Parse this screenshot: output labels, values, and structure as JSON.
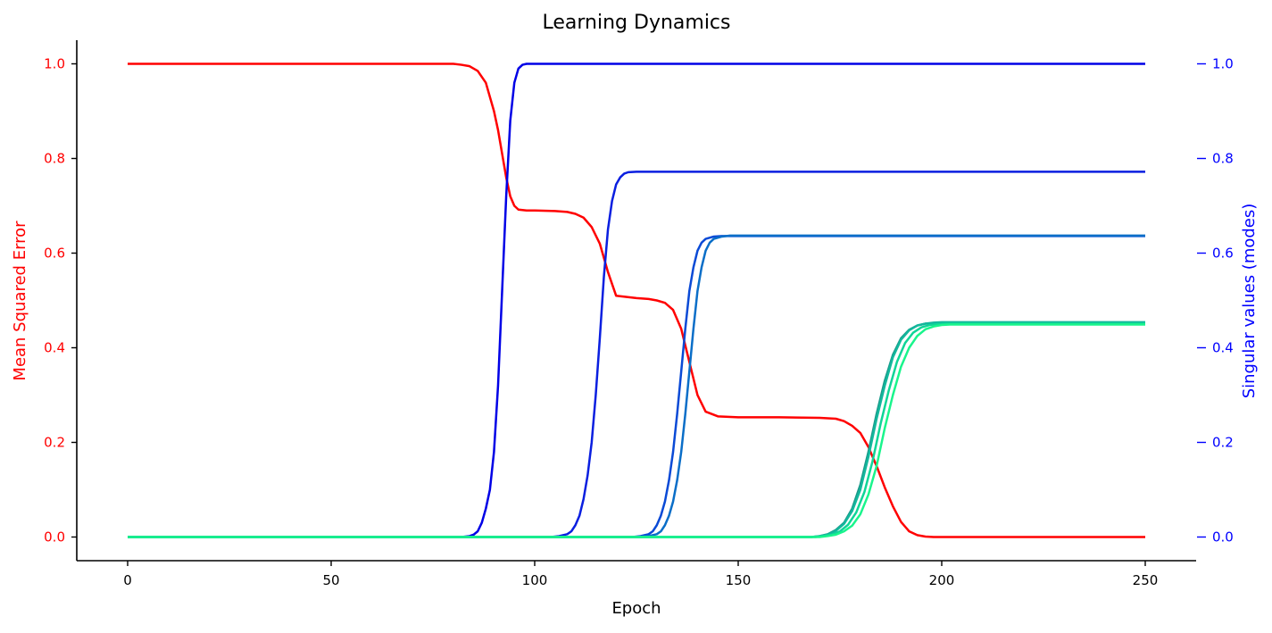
{
  "chart_data": {
    "type": "line",
    "title": "Learning Dynamics",
    "xlabel": "Epoch",
    "ylabel_left": "Mean Squared Error",
    "ylabel_right": "Singular values (modes)",
    "xlim": [
      -12.5,
      262.5
    ],
    "ylim_left": [
      -0.05,
      1.05
    ],
    "ylim_right": [
      -0.05,
      1.05
    ],
    "xticks": [
      0,
      50,
      100,
      150,
      200,
      250
    ],
    "xtick_labels": [
      "0",
      "50",
      "100",
      "150",
      "200",
      "250"
    ],
    "yticks_left": [
      0.0,
      0.2,
      0.4,
      0.6,
      0.8,
      1.0
    ],
    "ytick_labels_left": [
      "0.0",
      "0.2",
      "0.4",
      "0.6",
      "0.8",
      "1.0"
    ],
    "yticks_right": [
      0.0,
      0.2,
      0.4,
      0.6,
      0.8,
      1.0
    ],
    "ytick_labels_right": [
      "0.0",
      "0.2",
      "0.4",
      "0.6",
      "0.8",
      "1.0"
    ],
    "grid": false,
    "colors": {
      "left_axis": "#ff0000",
      "right_axis": "#0000ff",
      "axes": "#000000"
    },
    "series": [
      {
        "axis": "left",
        "color": "#ff0000",
        "x": [
          0,
          80,
          82,
          84,
          86,
          88,
          90,
          91,
          92,
          93,
          94,
          95,
          96,
          98,
          100,
          105,
          108,
          110,
          112,
          114,
          116,
          118,
          120,
          125,
          128,
          130,
          132,
          134,
          136,
          138,
          140,
          142,
          145,
          150,
          160,
          170,
          174,
          176,
          178,
          180,
          182,
          184,
          186,
          188,
          190,
          192,
          194,
          196,
          198,
          200,
          250
        ],
        "y": [
          1.0,
          1.0,
          0.998,
          0.995,
          0.985,
          0.96,
          0.9,
          0.86,
          0.81,
          0.76,
          0.72,
          0.7,
          0.692,
          0.69,
          0.69,
          0.689,
          0.687,
          0.683,
          0.675,
          0.655,
          0.62,
          0.56,
          0.51,
          0.505,
          0.503,
          0.5,
          0.495,
          0.48,
          0.44,
          0.37,
          0.3,
          0.265,
          0.255,
          0.253,
          0.253,
          0.252,
          0.25,
          0.245,
          0.235,
          0.22,
          0.19,
          0.15,
          0.105,
          0.065,
          0.032,
          0.012,
          0.004,
          0.001,
          0.0,
          0.0,
          0.0
        ]
      },
      {
        "axis": "right",
        "color": "#0000e6",
        "x": [
          0,
          82,
          84,
          85,
          86,
          87,
          88,
          89,
          90,
          91,
          92,
          93,
          94,
          95,
          96,
          97,
          98,
          100,
          250
        ],
        "y": [
          0.0,
          0.0,
          0.002,
          0.005,
          0.012,
          0.03,
          0.06,
          0.1,
          0.18,
          0.32,
          0.52,
          0.72,
          0.88,
          0.96,
          0.99,
          0.998,
          1.0,
          1.0,
          1.0
        ]
      },
      {
        "axis": "right",
        "color": "#0a1fe0",
        "x": [
          0,
          104,
          106,
          108,
          109,
          110,
          111,
          112,
          113,
          114,
          115,
          116,
          117,
          118,
          119,
          120,
          121,
          122,
          123,
          125,
          250
        ],
        "y": [
          0.0,
          0.0,
          0.002,
          0.006,
          0.012,
          0.025,
          0.045,
          0.08,
          0.13,
          0.2,
          0.3,
          0.42,
          0.55,
          0.65,
          0.71,
          0.745,
          0.76,
          0.768,
          0.771,
          0.772,
          0.772
        ]
      },
      {
        "axis": "right",
        "color": "#0a4ad6",
        "x": [
          0,
          124,
          126,
          128,
          129,
          130,
          131,
          132,
          133,
          134,
          135,
          136,
          137,
          138,
          139,
          140,
          141,
          142,
          144,
          146,
          250
        ],
        "y": [
          0.0,
          0.0,
          0.002,
          0.006,
          0.012,
          0.025,
          0.045,
          0.075,
          0.12,
          0.18,
          0.26,
          0.35,
          0.44,
          0.52,
          0.57,
          0.605,
          0.622,
          0.63,
          0.635,
          0.636,
          0.636
        ]
      },
      {
        "axis": "right",
        "color": "#0a6ec8",
        "x": [
          0,
          126,
          128,
          130,
          131,
          132,
          133,
          134,
          135,
          136,
          137,
          138,
          139,
          140,
          141,
          142,
          143,
          144,
          146,
          148,
          250
        ],
        "y": [
          0.0,
          0.0,
          0.002,
          0.006,
          0.012,
          0.025,
          0.045,
          0.075,
          0.12,
          0.18,
          0.26,
          0.35,
          0.44,
          0.52,
          0.57,
          0.605,
          0.622,
          0.63,
          0.635,
          0.637,
          0.637
        ]
      },
      {
        "axis": "right",
        "color": "#1a9a8a",
        "x": [
          0,
          168,
          170,
          172,
          174,
          176,
          178,
          180,
          182,
          184,
          186,
          188,
          190,
          192,
          194,
          196,
          198,
          200,
          250
        ],
        "y": [
          0.0,
          0.0,
          0.002,
          0.006,
          0.015,
          0.03,
          0.06,
          0.11,
          0.18,
          0.26,
          0.33,
          0.385,
          0.42,
          0.438,
          0.447,
          0.451,
          0.452,
          0.453,
          0.453
        ]
      },
      {
        "axis": "right",
        "color": "#13b79c",
        "x": [
          0,
          168,
          170,
          172,
          174,
          176,
          178,
          180,
          182,
          184,
          186,
          188,
          190,
          192,
          194,
          196,
          198,
          200,
          250
        ],
        "y": [
          0.0,
          0.0,
          0.002,
          0.005,
          0.013,
          0.028,
          0.055,
          0.1,
          0.17,
          0.25,
          0.32,
          0.38,
          0.417,
          0.437,
          0.447,
          0.451,
          0.453,
          0.454,
          0.454
        ]
      },
      {
        "axis": "right",
        "color": "#0fd597",
        "x": [
          0,
          169,
          171,
          173,
          175,
          177,
          179,
          181,
          183,
          185,
          187,
          189,
          191,
          193,
          195,
          197,
          199,
          201,
          250
        ],
        "y": [
          0.0,
          0.0,
          0.002,
          0.005,
          0.012,
          0.026,
          0.052,
          0.095,
          0.16,
          0.24,
          0.31,
          0.37,
          0.41,
          0.432,
          0.443,
          0.448,
          0.45,
          0.451,
          0.451
        ]
      },
      {
        "axis": "right",
        "color": "#19f58c",
        "x": [
          0,
          170,
          172,
          174,
          176,
          178,
          180,
          182,
          184,
          186,
          188,
          190,
          192,
          194,
          196,
          198,
          200,
          202,
          250
        ],
        "y": [
          0.0,
          0.0,
          0.002,
          0.005,
          0.012,
          0.024,
          0.048,
          0.09,
          0.15,
          0.23,
          0.3,
          0.36,
          0.4,
          0.425,
          0.439,
          0.445,
          0.448,
          0.449,
          0.449
        ]
      }
    ]
  }
}
